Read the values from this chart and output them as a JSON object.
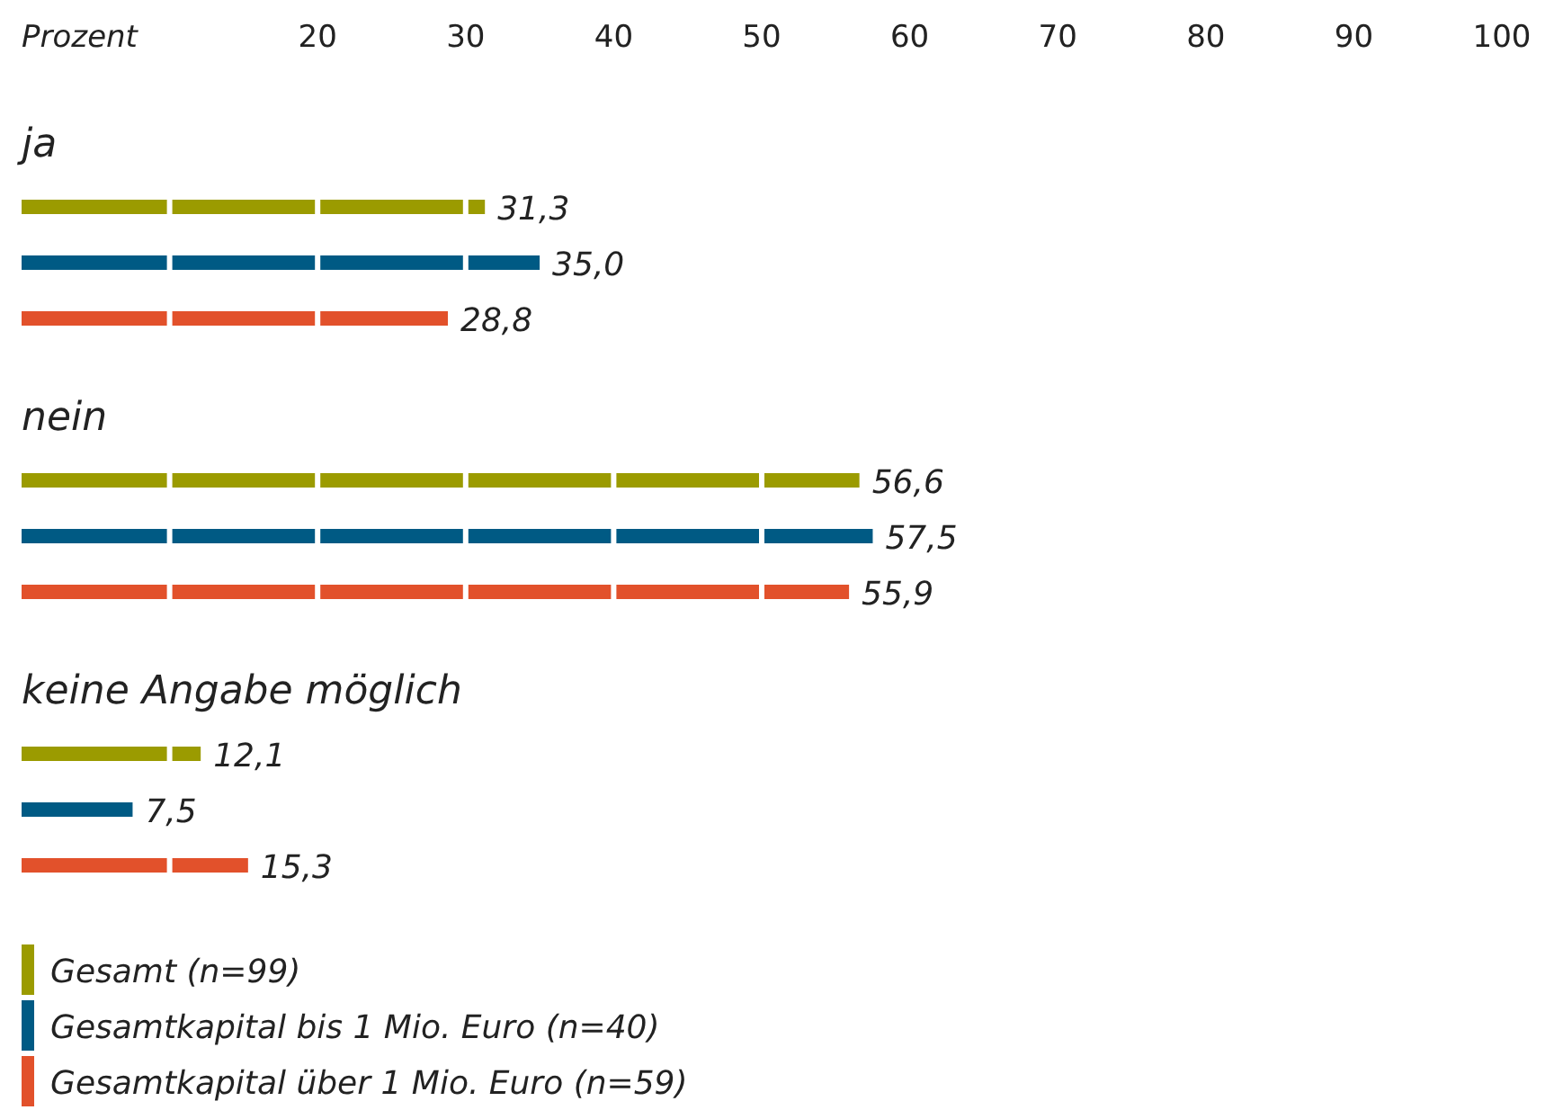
{
  "chart_data": {
    "type": "bar",
    "orientation": "horizontal",
    "xlabel": "Prozent",
    "categories": [
      "ja",
      "nein",
      "keine Angabe möglich"
    ],
    "series": [
      {
        "name": "Gesamt (n=99)",
        "color": "#9b9b00",
        "values": [
          31.3,
          56.6,
          12.1
        ],
        "value_labels": [
          "31,3",
          "56,6",
          "12,1"
        ]
      },
      {
        "name": "Gesamtkapital bis 1 Mio. Euro (n=40)",
        "color": "#005a84",
        "values": [
          35.0,
          57.5,
          7.5
        ],
        "value_labels": [
          "35,0",
          "57,5",
          "7,5"
        ]
      },
      {
        "name": "Gesamtkapital über 1 Mio. Euro (n=59)",
        "color": "#e2512b",
        "values": [
          28.8,
          55.9,
          15.3
        ],
        "value_labels": [
          "28,8",
          "55,9",
          "15,3"
        ]
      }
    ],
    "xlim": [
      0,
      100
    ],
    "xticks": [
      {
        "value": 10,
        "label": null
      },
      20,
      30,
      40,
      50,
      60,
      70,
      80,
      90,
      100
    ],
    "grid": "x",
    "legend": "bottom left"
  }
}
